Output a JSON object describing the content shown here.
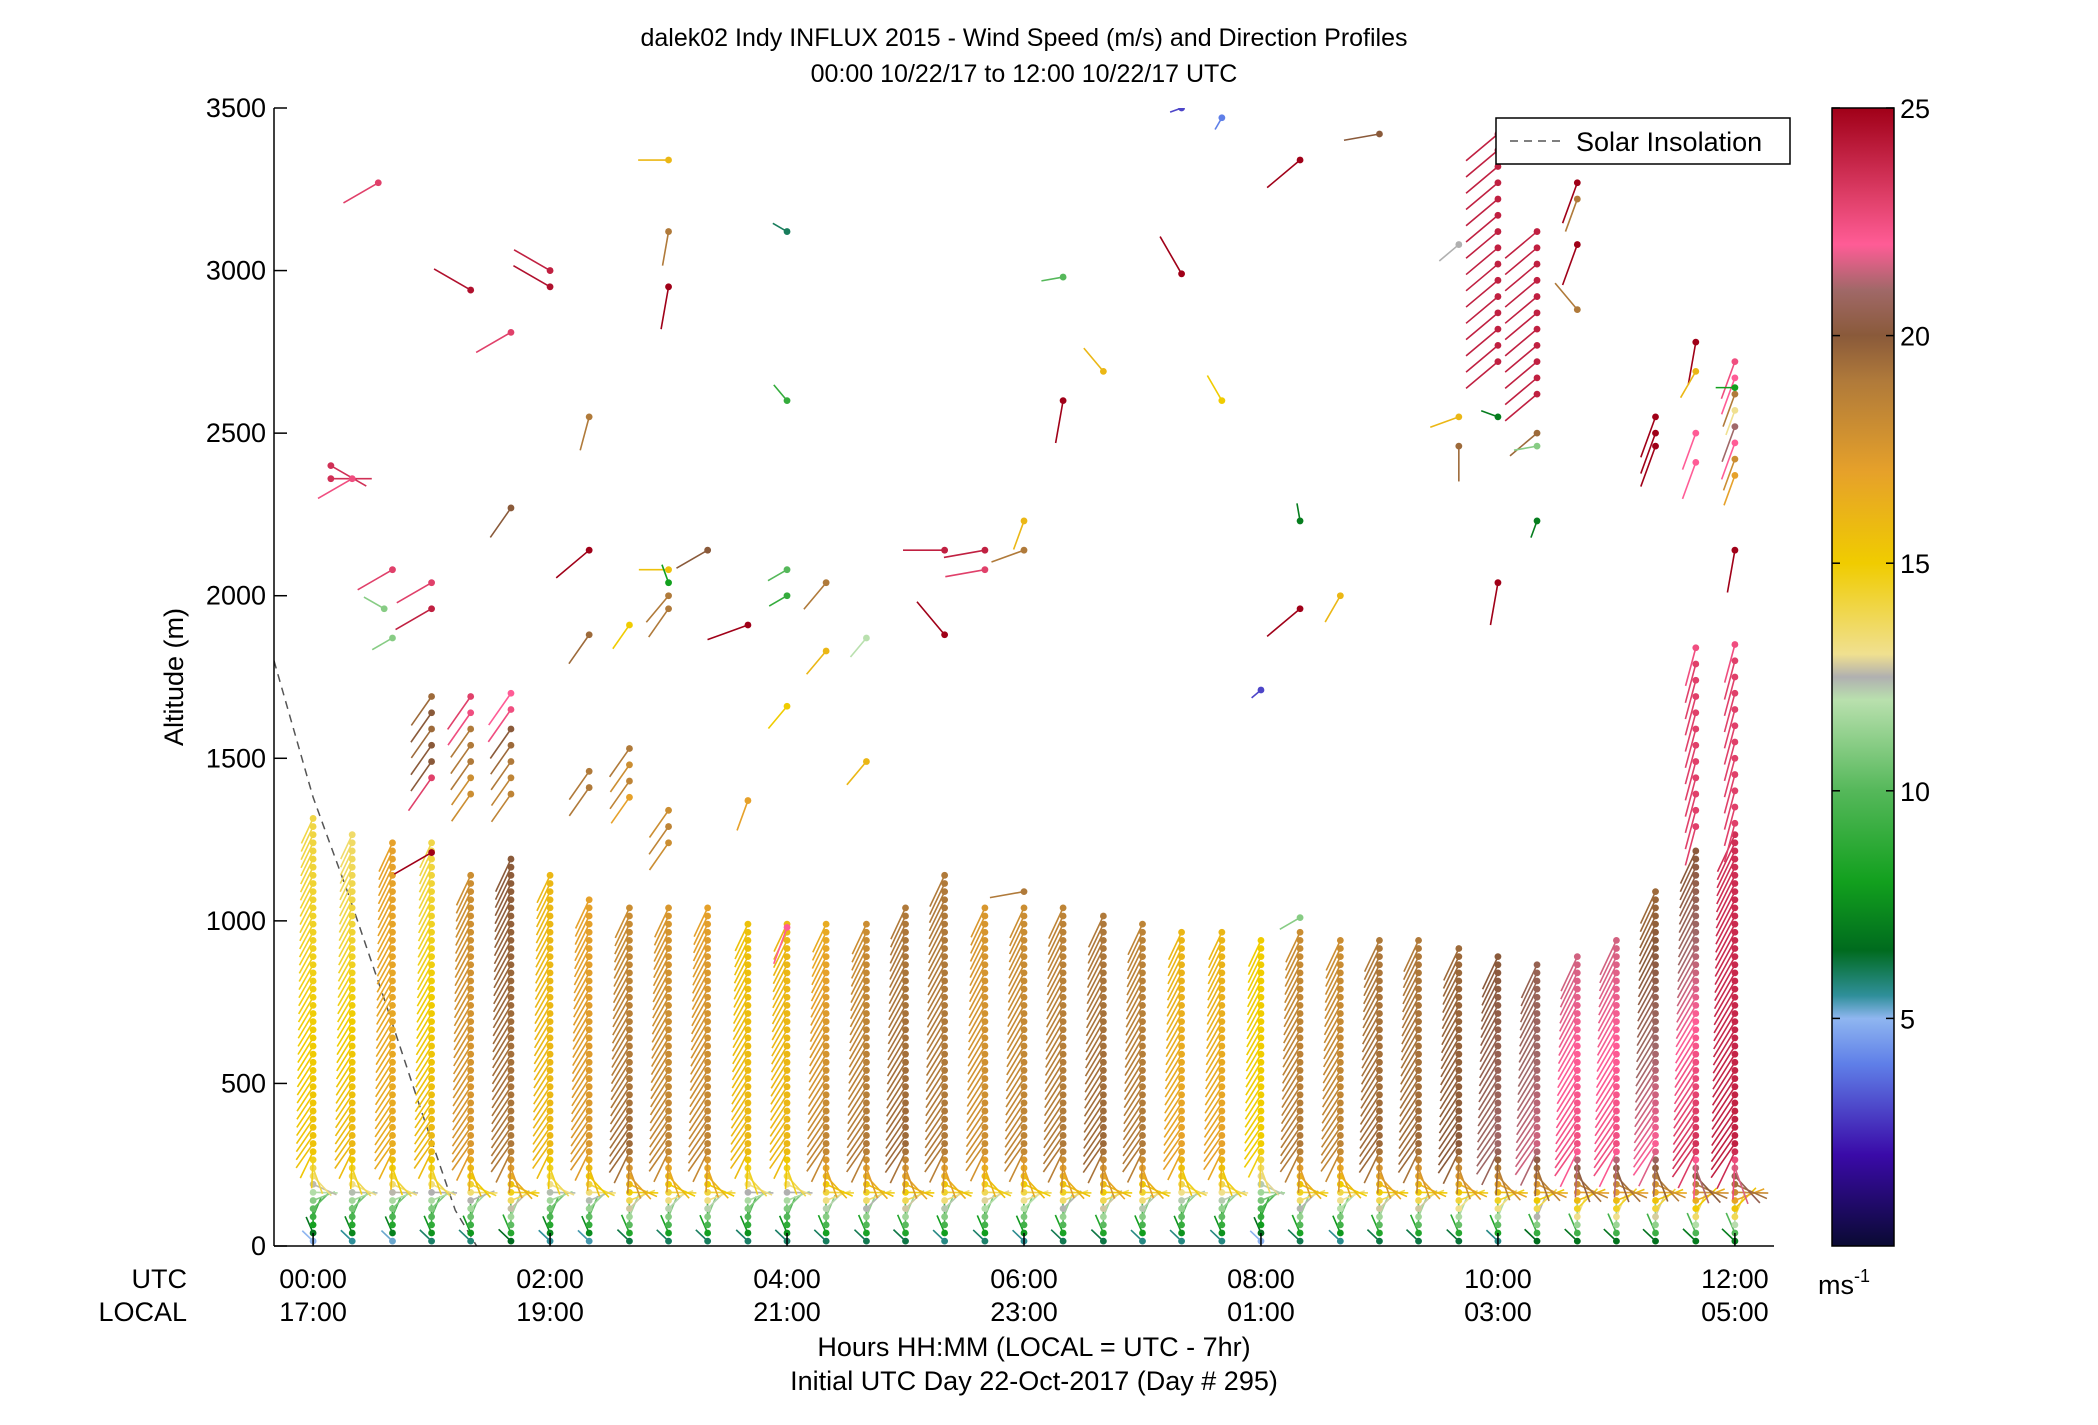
{
  "chart_data": {
    "type": "scatter",
    "title": "dalek02 Indy INFLUX 2015 - Wind Speed (m/s) and Direction Profiles",
    "subtitle": "00:00 10/22/17 to 12:00 10/22/17  UTC",
    "ylabel": "Altitude (m)",
    "xlabel": "Hours HH:MM  (LOCAL = UTC - 7hr)",
    "xlabel2": "Initial UTC Day 22-Oct-2017 (Day # 295)",
    "xrow_utc_label": "UTC",
    "xrow_local_label": "LOCAL",
    "xlim": [
      -0.33,
      12.33
    ],
    "ylim": [
      0,
      3500
    ],
    "x_ticks": [
      0,
      2,
      4,
      6,
      8,
      10,
      12
    ],
    "x_ticks_utc": [
      "00:00",
      "02:00",
      "04:00",
      "06:00",
      "08:00",
      "10:00",
      "12:00"
    ],
    "x_ticks_local": [
      "17:00",
      "19:00",
      "21:00",
      "23:00",
      "01:00",
      "03:00",
      "05:00"
    ],
    "y_ticks": [
      0,
      500,
      1000,
      1500,
      2000,
      2500,
      3000,
      3500
    ],
    "y_tick_labels": [
      "0",
      "500",
      "1000",
      "1500",
      "2000",
      "2500",
      "3000",
      "3500"
    ],
    "colorbar": {
      "min": 0,
      "max": 25,
      "ticks": [
        5,
        10,
        15,
        20,
        25
      ],
      "tick_labels": [
        "5",
        "10",
        "15",
        "20",
        "25"
      ],
      "unit_base": "ms",
      "unit_exp": "-1",
      "stops": [
        {
          "v": 0,
          "c": "#0a0a33"
        },
        {
          "v": 2,
          "c": "#3a0aa8"
        },
        {
          "v": 4,
          "c": "#5f7fe8"
        },
        {
          "v": 5,
          "c": "#8fb6f0"
        },
        {
          "v": 5.5,
          "c": "#2f8f9a"
        },
        {
          "v": 6.5,
          "c": "#006b1e"
        },
        {
          "v": 8,
          "c": "#12a01e"
        },
        {
          "v": 10,
          "c": "#55b85a"
        },
        {
          "v": 12,
          "c": "#b9e0ae"
        },
        {
          "v": 12.5,
          "c": "#b0b0b0"
        },
        {
          "v": 13,
          "c": "#f0e090"
        },
        {
          "v": 15,
          "c": "#f0cc00"
        },
        {
          "v": 17,
          "c": "#e6a12a"
        },
        {
          "v": 19,
          "c": "#b07a3a"
        },
        {
          "v": 20,
          "c": "#8a5a3a"
        },
        {
          "v": 21,
          "c": "#a06868"
        },
        {
          "v": 22,
          "c": "#ff5c96"
        },
        {
          "v": 23,
          "c": "#e0406a"
        },
        {
          "v": 25,
          "c": "#a00018"
        }
      ]
    },
    "legend": {
      "label": "Solar Insolation",
      "placement": "top-right"
    },
    "solar_insolation": {
      "x": [
        -0.33,
        0.0,
        0.3,
        0.6,
        0.9,
        1.2,
        1.38
      ],
      "y": [
        1800,
        1380,
        1080,
        760,
        430,
        110,
        0
      ]
    },
    "profiles": {
      "times": [
        0,
        0.33,
        0.67,
        1.0,
        1.33,
        1.67,
        2.0,
        2.33,
        2.67,
        3.0,
        3.33,
        3.67,
        4.0,
        4.33,
        4.67,
        5.0,
        5.33,
        5.67,
        6.0,
        6.33,
        6.67,
        7.0,
        7.33,
        7.67,
        8.0,
        8.33,
        8.67,
        9.0,
        9.33,
        9.67,
        10.0,
        10.33,
        10.67,
        11.0,
        11.33,
        11.67,
        12.0
      ],
      "tops": [
        1320,
        1280,
        1240,
        1240,
        1160,
        1200,
        1160,
        1080,
        1060,
        1050,
        1050,
        1010,
        1010,
        1010,
        1000,
        1040,
        1160,
        1050,
        1040,
        1040,
        1030,
        1000,
        980,
        980,
        950,
        980,
        950,
        960,
        940,
        930,
        900,
        870,
        900,
        960,
        1090,
        1220,
        1280
      ],
      "speed_bottom": [
        2.5,
        3,
        2.5,
        3.5,
        3,
        3.5,
        3,
        2.5,
        3,
        3,
        3,
        3.5,
        3.5,
        3,
        3,
        3,
        2.5,
        3,
        2.5,
        3,
        3,
        2.5,
        3,
        3,
        2.5,
        3,
        2.5,
        3,
        3,
        3,
        2,
        3,
        3,
        3,
        3,
        3,
        3
      ],
      "speed_mid": [
        15.5,
        16,
        16.5,
        16,
        17.5,
        19,
        16,
        17.5,
        19.5,
        18.5,
        18.5,
        16,
        16,
        18.5,
        19,
        19.5,
        19,
        18,
        18.5,
        19,
        19.5,
        19,
        17,
        17,
        15,
        19,
        18.5,
        19.5,
        19.5,
        20,
        21,
        21.5,
        22.5,
        22.5,
        22,
        23.5,
        24
      ],
      "speed_top": [
        14,
        13.5,
        17,
        14,
        18,
        20,
        16,
        17,
        18,
        17.5,
        17,
        15.5,
        16,
        16.5,
        18,
        19,
        19,
        17.5,
        18,
        18.5,
        19,
        18.5,
        16,
        16,
        15,
        18,
        18,
        19,
        19,
        19.5,
        20,
        20.5,
        21.5,
        21.5,
        19.5,
        20,
        23.5
      ],
      "dir_low_deg": 300,
      "dir_mid_deg": 215,
      "dir_top_deg": 205
    },
    "extra_clusters": [
      {
        "t": 1.0,
        "alts": [
          1440,
          1490,
          1540,
          1590,
          1640,
          1690
        ],
        "spd": [
          23,
          20,
          20,
          19.5,
          20,
          19.5
        ],
        "dir": 215
      },
      {
        "t": 1.33,
        "alts": [
          1390,
          1440,
          1490,
          1540,
          1590,
          1640,
          1690
        ],
        "spd": [
          18,
          18,
          19,
          19,
          19,
          22.5,
          23
        ],
        "dir": 215
      },
      {
        "t": 1.67,
        "alts": [
          1390,
          1440,
          1490,
          1540,
          1590,
          1650,
          1700
        ],
        "spd": [
          18.5,
          18.5,
          19,
          19.5,
          20,
          22.5,
          22
        ],
        "dir": 215
      },
      {
        "t": 2.33,
        "alts": [
          1410,
          1460
        ],
        "spd": [
          19,
          19
        ],
        "dir": 215
      },
      {
        "t": 2.67,
        "alts": [
          1380,
          1430,
          1480,
          1530
        ],
        "spd": [
          17,
          18.5,
          18,
          19
        ],
        "dir": 215
      },
      {
        "t": 3.0,
        "alts": [
          1240,
          1290,
          1340
        ],
        "spd": [
          18,
          18.5,
          18
        ],
        "dir": 215
      },
      {
        "t": 10.0,
        "alts": [
          2720,
          2770,
          2820,
          2870,
          2920,
          2970,
          3020,
          3070,
          3120,
          3170,
          3220,
          3270,
          3320,
          3370,
          3420
        ],
        "spd": [
          24,
          24,
          24,
          24,
          24,
          24,
          24,
          24,
          24,
          24,
          24,
          24,
          24,
          24,
          24
        ],
        "dir": 230
      },
      {
        "t": 10.33,
        "alts": [
          2620,
          2670,
          2720,
          2770,
          2820,
          2870,
          2920,
          2970,
          3020,
          3070,
          3120
        ],
        "spd": [
          24,
          24,
          24,
          24,
          24,
          24,
          24,
          24,
          24,
          24,
          24
        ],
        "dir": 230
      },
      {
        "t": 11.67,
        "alts": [
          1290,
          1340,
          1390,
          1440,
          1490,
          1540,
          1590,
          1640,
          1690,
          1740,
          1790,
          1840
        ],
        "spd": [
          23,
          23,
          23,
          23,
          23,
          23,
          23,
          23,
          23,
          23,
          23,
          22.5
        ],
        "dir": 195
      },
      {
        "t": 12.0,
        "alts": [
          1300,
          1350,
          1400,
          1450,
          1500,
          1550,
          1600,
          1650,
          1700,
          1750,
          1800,
          1850
        ],
        "spd": [
          23,
          23,
          23,
          23,
          23,
          23,
          23,
          23,
          23,
          23,
          23,
          22.5
        ],
        "dir": 195
      },
      {
        "t": 12.0,
        "alts": [
          2370,
          2420,
          2470,
          2520,
          2570,
          2620,
          2670,
          2720
        ],
        "spd": [
          17,
          18,
          22,
          21,
          13,
          19,
          22,
          22.5
        ],
        "dir": 200
      }
    ],
    "sparse_points": [
      {
        "t": 0.15,
        "alt": 2400,
        "spd": 23.5,
        "dir": 120
      },
      {
        "t": 0.15,
        "alt": 2360,
        "spd": 23.5,
        "dir": 90
      },
      {
        "t": 0.33,
        "alt": 2360,
        "spd": 22.5,
        "dir": 240
      },
      {
        "t": 0.55,
        "alt": 3270,
        "spd": 23,
        "dir": 240
      },
      {
        "t": 0.67,
        "alt": 2080,
        "spd": 23,
        "dir": 240
      },
      {
        "t": 0.6,
        "alt": 1960,
        "spd": 11,
        "dir": 300
      },
      {
        "t": 0.67,
        "alt": 1870,
        "spd": 11,
        "dir": 240
      },
      {
        "t": 1.0,
        "alt": 2040,
        "spd": 23,
        "dir": 240
      },
      {
        "t": 1.0,
        "alt": 1960,
        "spd": 24,
        "dir": 240
      },
      {
        "t": 1.0,
        "alt": 1210,
        "spd": 25,
        "dir": 240
      },
      {
        "t": 1.33,
        "alt": 2940,
        "spd": 24.5,
        "dir": 300
      },
      {
        "t": 1.67,
        "alt": 2810,
        "spd": 23,
        "dir": 240
      },
      {
        "t": 1.67,
        "alt": 2270,
        "spd": 20,
        "dir": 215
      },
      {
        "t": 2.0,
        "alt": 3000,
        "spd": 24,
        "dir": 300
      },
      {
        "t": 2.0,
        "alt": 2950,
        "spd": 24.5,
        "dir": 300
      },
      {
        "t": 2.33,
        "alt": 2550,
        "spd": 19,
        "dir": 195
      },
      {
        "t": 2.33,
        "alt": 2140,
        "spd": 25,
        "dir": 230
      },
      {
        "t": 2.33,
        "alt": 1880,
        "spd": 19.5,
        "dir": 215
      },
      {
        "t": 2.67,
        "alt": 1910,
        "spd": 15,
        "dir": 215
      },
      {
        "t": 3.0,
        "alt": 3340,
        "spd": 16,
        "dir": 270
      },
      {
        "t": 3.0,
        "alt": 3120,
        "spd": 19,
        "dir": 190
      },
      {
        "t": 3.0,
        "alt": 2950,
        "spd": 25,
        "dir": 190
      },
      {
        "t": 3.0,
        "alt": 2080,
        "spd": 15.5,
        "dir": 270
      },
      {
        "t": 3.0,
        "alt": 2040,
        "spd": 8,
        "dir": 340
      },
      {
        "t": 3.0,
        "alt": 2000,
        "spd": 19,
        "dir": 220
      },
      {
        "t": 3.0,
        "alt": 1960,
        "spd": 19,
        "dir": 215
      },
      {
        "t": 3.33,
        "alt": 2140,
        "spd": 20,
        "dir": 240
      },
      {
        "t": 3.67,
        "alt": 1910,
        "spd": 25,
        "dir": 250
      },
      {
        "t": 3.67,
        "alt": 1370,
        "spd": 17,
        "dir": 200
      },
      {
        "t": 4.0,
        "alt": 3120,
        "spd": 6,
        "dir": 300
      },
      {
        "t": 4.0,
        "alt": 2600,
        "spd": 9,
        "dir": 320
      },
      {
        "t": 4.0,
        "alt": 2080,
        "spd": 10,
        "dir": 240
      },
      {
        "t": 4.0,
        "alt": 2000,
        "spd": 9,
        "dir": 240
      },
      {
        "t": 4.0,
        "alt": 1660,
        "spd": 15,
        "dir": 220
      },
      {
        "t": 4.0,
        "alt": 980,
        "spd": 22,
        "dir": 200
      },
      {
        "t": 4.33,
        "alt": 2040,
        "spd": 19,
        "dir": 220
      },
      {
        "t": 4.33,
        "alt": 1830,
        "spd": 16,
        "dir": 220
      },
      {
        "t": 4.67,
        "alt": 1870,
        "spd": 12,
        "dir": 220
      },
      {
        "t": 4.67,
        "alt": 1490,
        "spd": 16,
        "dir": 220
      },
      {
        "t": 5.33,
        "alt": 2140,
        "spd": 24,
        "dir": 270
      },
      {
        "t": 5.67,
        "alt": 2140,
        "spd": 24,
        "dir": 260
      },
      {
        "t": 5.67,
        "alt": 2080,
        "spd": 23,
        "dir": 260
      },
      {
        "t": 5.33,
        "alt": 1880,
        "spd": 25,
        "dir": 320
      },
      {
        "t": 6.0,
        "alt": 2230,
        "spd": 16,
        "dir": 200
      },
      {
        "t": 6.0,
        "alt": 2140,
        "spd": 19,
        "dir": 250
      },
      {
        "t": 6.0,
        "alt": 1090,
        "spd": 19,
        "dir": 260
      },
      {
        "t": 6.33,
        "alt": 2980,
        "spd": 10,
        "dir": 260
      },
      {
        "t": 6.33,
        "alt": 2600,
        "spd": 25,
        "dir": 190
      },
      {
        "t": 6.67,
        "alt": 2690,
        "spd": 16,
        "dir": 320
      },
      {
        "t": 7.33,
        "alt": 3500,
        "spd": 3,
        "dir": 250
      },
      {
        "t": 7.33,
        "alt": 2990,
        "spd": 25,
        "dir": 330
      },
      {
        "t": 7.67,
        "alt": 3470,
        "spd": 4,
        "dir": 210
      },
      {
        "t": 7.67,
        "alt": 2600,
        "spd": 15,
        "dir": 330
      },
      {
        "t": 8.33,
        "alt": 3340,
        "spd": 25,
        "dir": 230
      },
      {
        "t": 8.33,
        "alt": 1960,
        "spd": 25,
        "dir": 230
      },
      {
        "t": 8.0,
        "alt": 1710,
        "spd": 3,
        "dir": 230
      },
      {
        "t": 8.33,
        "alt": 2230,
        "spd": 7,
        "dir": 350
      },
      {
        "t": 8.67,
        "alt": 2000,
        "spd": 16,
        "dir": 210
      },
      {
        "t": 8.33,
        "alt": 1010,
        "spd": 11,
        "dir": 240
      },
      {
        "t": 9.0,
        "alt": 3420,
        "spd": 20,
        "dir": 260
      },
      {
        "t": 9.67,
        "alt": 3080,
        "spd": 12.5,
        "dir": 230
      },
      {
        "t": 9.67,
        "alt": 2550,
        "spd": 16,
        "dir": 250
      },
      {
        "t": 9.67,
        "alt": 2460,
        "spd": 19.5,
        "dir": 180
      },
      {
        "t": 10.0,
        "alt": 2550,
        "spd": 7,
        "dir": 290
      },
      {
        "t": 10.0,
        "alt": 2040,
        "spd": 25,
        "dir": 190
      },
      {
        "t": 10.33,
        "alt": 2500,
        "spd": 19.5,
        "dir": 230
      },
      {
        "t": 10.33,
        "alt": 2460,
        "spd": 11,
        "dir": 260
      },
      {
        "t": 10.33,
        "alt": 2230,
        "spd": 7,
        "dir": 200
      },
      {
        "t": 10.67,
        "alt": 3270,
        "spd": 25,
        "dir": 200
      },
      {
        "t": 10.67,
        "alt": 3220,
        "spd": 19,
        "dir": 200
      },
      {
        "t": 10.67,
        "alt": 3080,
        "spd": 25,
        "dir": 200
      },
      {
        "t": 10.67,
        "alt": 2880,
        "spd": 19,
        "dir": 320
      },
      {
        "t": 11.33,
        "alt": 2550,
        "spd": 25,
        "dir": 200
      },
      {
        "t": 11.33,
        "alt": 2500,
        "spd": 25,
        "dir": 200
      },
      {
        "t": 11.33,
        "alt": 2460,
        "spd": 25,
        "dir": 200
      },
      {
        "t": 11.67,
        "alt": 2780,
        "spd": 25,
        "dir": 190
      },
      {
        "t": 11.67,
        "alt": 2690,
        "spd": 16,
        "dir": 210
      },
      {
        "t": 11.67,
        "alt": 2500,
        "spd": 22,
        "dir": 200
      },
      {
        "t": 11.67,
        "alt": 2410,
        "spd": 22,
        "dir": 200
      },
      {
        "t": 12.0,
        "alt": 2640,
        "spd": 8,
        "dir": 270
      },
      {
        "t": 12.0,
        "alt": 2140,
        "spd": 25,
        "dir": 190
      }
    ]
  }
}
